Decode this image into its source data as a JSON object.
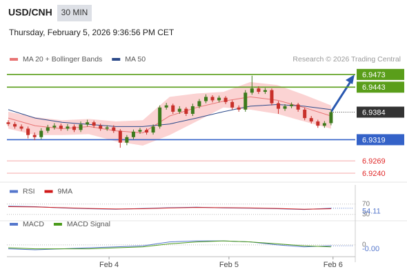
{
  "header": {
    "title": "USD/CNH",
    "interval": "30 MIN",
    "datetime": "Thursday, February 5, 2026 9:36:56 PM CET",
    "credit": "Research © 2026 Trading Central"
  },
  "chart_data": [
    {
      "type": "candlestick",
      "up_color": "#3d7a1c",
      "down_color": "#c8302a",
      "band_color": "#fbd3d3",
      "ylim": [
        6.9222,
        6.9494
      ],
      "xlim": [
        0,
        53.2
      ],
      "xticks": [
        {
          "value": 15.3,
          "label": "Feb 4"
        },
        {
          "value": 33.5,
          "label": "Feb 5"
        },
        {
          "value": 49.3,
          "label": "Feb 6"
        }
      ],
      "open": [
        6.936,
        6.9356,
        6.935,
        6.9345,
        6.933,
        6.9325,
        6.934,
        6.9348,
        6.9352,
        6.9345,
        6.935,
        6.9342,
        6.9355,
        6.936,
        6.9352,
        6.9345,
        6.9348,
        6.934,
        6.9312,
        6.9325,
        6.9338,
        6.9342,
        6.9336,
        6.935,
        6.9395,
        6.94,
        6.9385,
        6.9392,
        6.938,
        6.9398,
        6.941,
        6.942,
        6.9412,
        6.9418,
        6.9408,
        6.9395,
        6.939,
        6.943,
        6.944,
        6.9432,
        6.9436,
        6.9405,
        6.9392,
        6.9398,
        6.9402,
        6.939,
        6.937,
        6.9362,
        6.9352,
        6.9358
      ],
      "high": [
        6.9365,
        6.9361,
        6.9355,
        6.935,
        6.9336,
        6.9346,
        6.9354,
        6.9358,
        6.9357,
        6.9356,
        6.9355,
        6.9362,
        6.9366,
        6.9364,
        6.9357,
        6.9353,
        6.9353,
        6.9344,
        6.933,
        6.9343,
        6.9347,
        6.9346,
        6.9355,
        6.94,
        6.9406,
        6.9404,
        6.9398,
        6.9396,
        6.9404,
        6.9415,
        6.9426,
        6.9424,
        6.9423,
        6.9422,
        6.9412,
        6.94,
        6.9436,
        6.947,
        6.9445,
        6.9441,
        6.944,
        6.941,
        6.9403,
        6.9407,
        6.9406,
        6.9395,
        6.9375,
        6.9366,
        6.9363,
        6.9389
      ],
      "low": [
        6.9351,
        6.9345,
        6.934,
        6.9322,
        6.9318,
        6.932,
        6.9335,
        6.9343,
        6.934,
        6.934,
        6.9337,
        6.9337,
        6.935,
        6.9347,
        6.934,
        6.934,
        6.9335,
        6.93,
        6.9306,
        6.932,
        6.9333,
        6.9331,
        6.9331,
        6.9345,
        6.939,
        6.938,
        6.938,
        6.9375,
        6.9375,
        6.9393,
        6.9405,
        6.9407,
        6.9407,
        6.9403,
        6.939,
        6.9385,
        6.9385,
        6.9425,
        6.9427,
        6.9427,
        6.94,
        6.938,
        6.9387,
        6.9393,
        6.9385,
        6.9365,
        6.9357,
        6.9347,
        6.9347,
        6.9353
      ],
      "close": [
        6.9356,
        6.935,
        6.9345,
        6.933,
        6.9325,
        6.934,
        6.9348,
        6.9352,
        6.9345,
        6.935,
        6.9342,
        6.9355,
        6.936,
        6.9352,
        6.9345,
        6.9348,
        6.934,
        6.9312,
        6.9325,
        6.9338,
        6.9342,
        6.9336,
        6.935,
        6.9395,
        6.94,
        6.9385,
        6.9392,
        6.938,
        6.9398,
        6.941,
        6.942,
        6.9412,
        6.9418,
        6.9408,
        6.9395,
        6.939,
        6.943,
        6.944,
        6.9432,
        6.9436,
        6.9405,
        6.9392,
        6.9398,
        6.9402,
        6.939,
        6.937,
        6.9362,
        6.9352,
        6.9358,
        6.9384
      ],
      "series": [
        {
          "name": "MA 20 + Bollinger Bands",
          "color": "#e87474",
          "values": [
            6.937,
            6.9352,
            6.9345,
            6.935,
            6.934,
            6.9335,
            6.9375,
            6.9395,
            6.941,
            6.942,
            6.9412,
            6.9395,
            6.9375
          ],
          "upper": [
            6.9385,
            6.9372,
            6.9365,
            6.9368,
            6.9362,
            6.9365,
            6.942,
            6.9428,
            6.9432,
            6.9455,
            6.9448,
            6.9425,
            6.94
          ],
          "lower": [
            6.9345,
            6.933,
            6.933,
            6.9332,
            6.9315,
            6.9305,
            6.933,
            6.9362,
            6.9395,
            6.939,
            6.938,
            6.9362,
            6.9345
          ]
        },
        {
          "name": "MA 50",
          "color": "#2c4a8a",
          "values": [
            6.939,
            6.937,
            6.936,
            6.9355,
            6.935,
            6.935,
            6.9356,
            6.937,
            6.9385,
            6.9398,
            6.9402,
            6.9398,
            6.939
          ]
        }
      ],
      "levels": [
        {
          "value": 6.9473,
          "label": "6.9473",
          "color": "#5a9e1a",
          "style": "box"
        },
        {
          "value": 6.9443,
          "label": "6.9443",
          "color": "#5a9e1a",
          "style": "box"
        },
        {
          "value": 6.9384,
          "label": "6.9384",
          "color": "#333333",
          "style": "current"
        },
        {
          "value": 6.9319,
          "label": "6.9319",
          "color": "#3462c8",
          "style": "box"
        },
        {
          "value": 6.9269,
          "label": "6.9269",
          "color": "#e02828",
          "style": "text"
        },
        {
          "value": 6.924,
          "label": "6.9240",
          "color": "#e02828",
          "style": "text"
        }
      ]
    },
    {
      "type": "line",
      "ylim": [
        0,
        100
      ],
      "yticks": [
        70,
        30
      ],
      "value_labels": [
        "54.11"
      ],
      "series": [
        {
          "name": "RSI",
          "color": "#5577cc",
          "values": [
            62,
            60,
            55,
            52,
            50,
            53,
            56,
            58,
            55,
            54,
            52,
            49,
            54.11
          ]
        },
        {
          "name": "9MA",
          "color": "#d01818",
          "values": [
            60,
            59,
            56,
            53,
            51,
            52,
            55,
            57,
            56,
            55,
            53,
            50,
            52
          ]
        }
      ]
    },
    {
      "type": "line",
      "ylim": [
        -0.0012,
        0.0016
      ],
      "yticks": [
        0
      ],
      "value_labels": [
        "-0.00"
      ],
      "series": [
        {
          "name": "MACD",
          "color": "#5577cc",
          "values": [
            -0.0004,
            -0.0005,
            -0.0004,
            -0.0003,
            -0.0002,
            -0.0001,
            0.0003,
            0.0004,
            0.0004,
            0.0003,
            0,
            -0.0002,
            -0.0001
          ]
        },
        {
          "name": "MACD Signal",
          "color": "#4a9a1a",
          "values": [
            -0.0003,
            -0.0004,
            -0.0004,
            -0.0004,
            -0.0003,
            -0.0002,
            0.0001,
            0.0003,
            0.0004,
            0.0003,
            0.0001,
            -0.0001,
            -0.0002
          ]
        }
      ]
    }
  ]
}
